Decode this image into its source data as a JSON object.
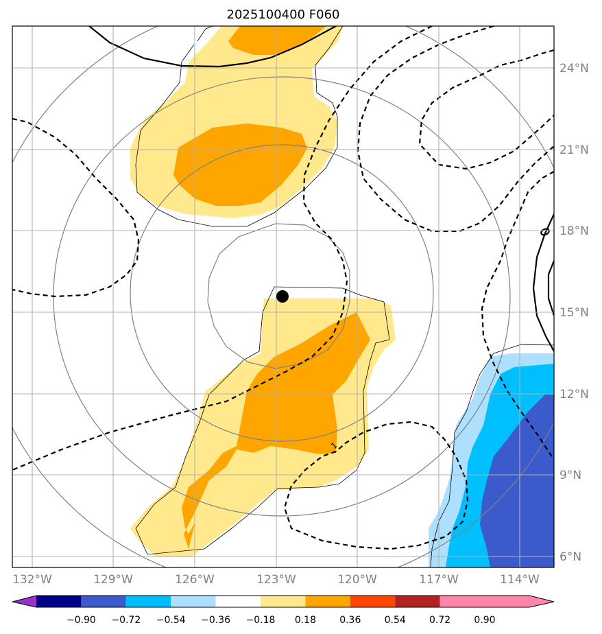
{
  "title": "2025100400 F060",
  "lat_labels": [
    "24°N",
    "21°N",
    "18°N",
    "15°N",
    "12°N",
    "9°N",
    "6°N"
  ],
  "lon_labels": [
    "132°W",
    "129°W",
    "126°W",
    "123°W",
    "120°W",
    "117°W",
    "114°W"
  ],
  "colorbar": {
    "ticks": [
      "−0.90",
      "−0.72",
      "−0.54",
      "−0.36",
      "−0.18",
      "0.18",
      "0.36",
      "0.54",
      "0.72",
      "0.90"
    ],
    "colors": [
      "#9932CC",
      "#00008B",
      "#3B5BCC",
      "#00BFFF",
      "#ADDFFF",
      "#FFFFFF",
      "#FFE98C",
      "#FFA500",
      "#FF4500",
      "#B22222",
      "#FF85AA"
    ]
  },
  "fill_colors": {
    "light_yellow": "#FFE98C",
    "orange": "#FFA500",
    "light_blue": "#ADDFFF",
    "deep_sky": "#00BFFF",
    "royal_blue": "#3B5BCC"
  },
  "contour_label": "1",
  "center_marker": "storm-center"
}
